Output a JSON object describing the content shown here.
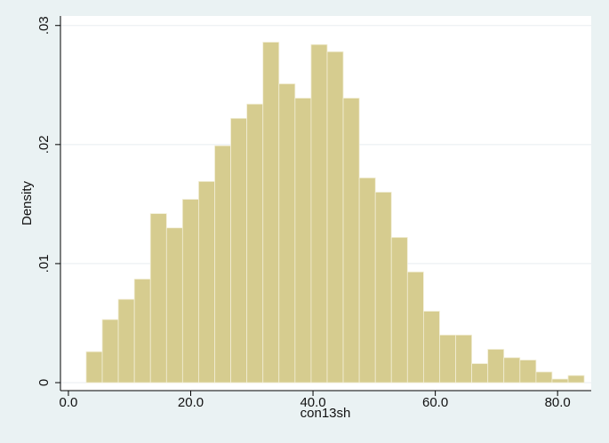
{
  "chart_data": {
    "type": "histogram",
    "xlabel": "con13sh",
    "ylabel": "Density",
    "bins": [
      2.91,
      5.54,
      8.16,
      10.79,
      13.42,
      16.05,
      18.67,
      21.3,
      23.93,
      26.55,
      29.18,
      31.81,
      34.43,
      37.06,
      39.69,
      42.32,
      44.94,
      47.57,
      50.2,
      52.82,
      55.45,
      58.08,
      60.7,
      63.33,
      65.96,
      68.59,
      71.21,
      73.84,
      76.47,
      79.09,
      81.72,
      84.35
    ],
    "values": [
      0.0026,
      0.0053,
      0.007,
      0.0087,
      0.0142,
      0.013,
      0.0154,
      0.0169,
      0.0199,
      0.0222,
      0.0234,
      0.0286,
      0.0251,
      0.0239,
      0.0284,
      0.0278,
      0.0239,
      0.0172,
      0.016,
      0.0122,
      0.0093,
      0.006,
      0.004,
      0.004,
      0.0016,
      0.0028,
      0.0021,
      0.0019,
      0.0009,
      0.0003,
      0.0006
    ],
    "color": "#d6cc8f",
    "xlim": [
      -1.3,
      85.5
    ],
    "xticks": [
      {
        "value": 0,
        "label": "0.0"
      },
      {
        "value": 20,
        "label": "20.0"
      },
      {
        "value": 40,
        "label": "40.0"
      },
      {
        "value": 60,
        "label": "60.0"
      },
      {
        "value": 80,
        "label": "80.0"
      }
    ],
    "ylim": [
      -0.00067,
      0.0308
    ],
    "yticks": [
      0,
      {
        "value": 0.01,
        "label": ".01"
      },
      {
        "value": 0.02,
        "label": ".02"
      },
      {
        "value": 0.03,
        "label": ".03"
      }
    ],
    "grid": true
  }
}
